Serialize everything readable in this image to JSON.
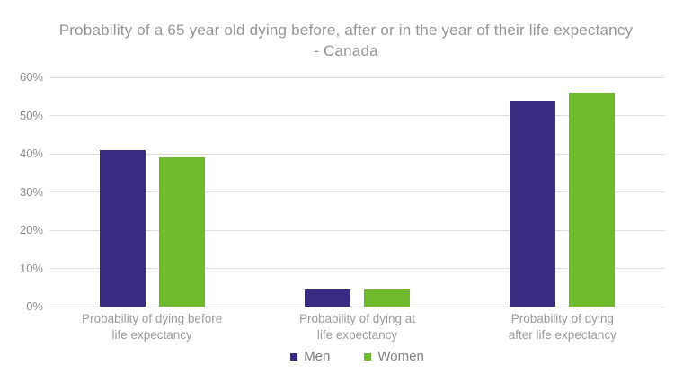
{
  "title": {
    "line1": "Probability of a 65 year old dying before, after or in the year of their life expectancy",
    "line2": "- Canada"
  },
  "chart_data": {
    "type": "bar",
    "title": "Probability of a 65 year old dying before, after or in the year of their life expectancy - Canada",
    "categories": [
      "Probability of dying before life expectancy",
      "Probability of dying at life expectancy",
      "Probability of dying after life expectancy"
    ],
    "categories_lines": [
      [
        "Probability of dying before",
        "life expectancy"
      ],
      [
        "Probability of dying at",
        "life expectancy"
      ],
      [
        "Probability of dying",
        "after life expectancy"
      ]
    ],
    "series": [
      {
        "name": "Men",
        "color": "#392A82",
        "values": [
          41,
          4.5,
          54
        ]
      },
      {
        "name": "Women",
        "color": "#6FBA2C",
        "values": [
          39,
          4.5,
          56
        ]
      }
    ],
    "xlabel": "",
    "ylabel": "",
    "ylim": [
      0,
      60
    ],
    "ytick_values": [
      0,
      10,
      20,
      30,
      40,
      50,
      60
    ],
    "yticks": [
      "0%",
      "10%",
      "20%",
      "30%",
      "40%",
      "50%",
      "60%"
    ],
    "grid": true,
    "legend_position": "bottom"
  },
  "colors": {
    "men": "#392A82",
    "women": "#6FBA2C",
    "gridline": "#DDDDDD",
    "title_text": "#949494",
    "tick_text": "#8A8A8A",
    "category_text": "#9A9A9A",
    "legend_text": "#7F7F7F",
    "background": "#FFFFFF"
  }
}
